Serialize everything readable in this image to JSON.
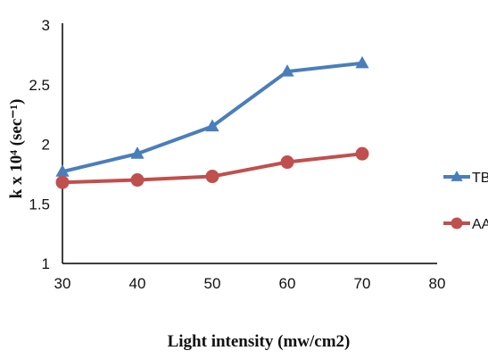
{
  "chart_data": {
    "type": "line",
    "title": "",
    "xlabel": "Light intensity (mw/cm2)",
    "ylabel": "k x 10⁴ (sec⁻¹)",
    "xlim": [
      30,
      80
    ],
    "ylim": [
      1,
      3
    ],
    "xticks": [
      30,
      40,
      50,
      60,
      70,
      80
    ],
    "yticks": [
      1,
      1.5,
      2,
      2.5,
      3
    ],
    "xtick_labels": [
      "30",
      "40",
      "50",
      "60",
      "70",
      "80"
    ],
    "ytick_labels": [
      "1",
      "1.5",
      "2",
      "2.5",
      "3"
    ],
    "grid": false,
    "legend_position": "right",
    "x": [
      30,
      40,
      50,
      60,
      70
    ],
    "series": [
      {
        "name": "TB",
        "values": [
          1.77,
          1.92,
          2.15,
          2.61,
          2.68
        ],
        "color": "#4a7ebb",
        "marker": "triangle"
      },
      {
        "name": "AA",
        "values": [
          1.68,
          1.7,
          1.73,
          1.85,
          1.92
        ],
        "color": "#c0504d",
        "marker": "circle"
      }
    ]
  }
}
